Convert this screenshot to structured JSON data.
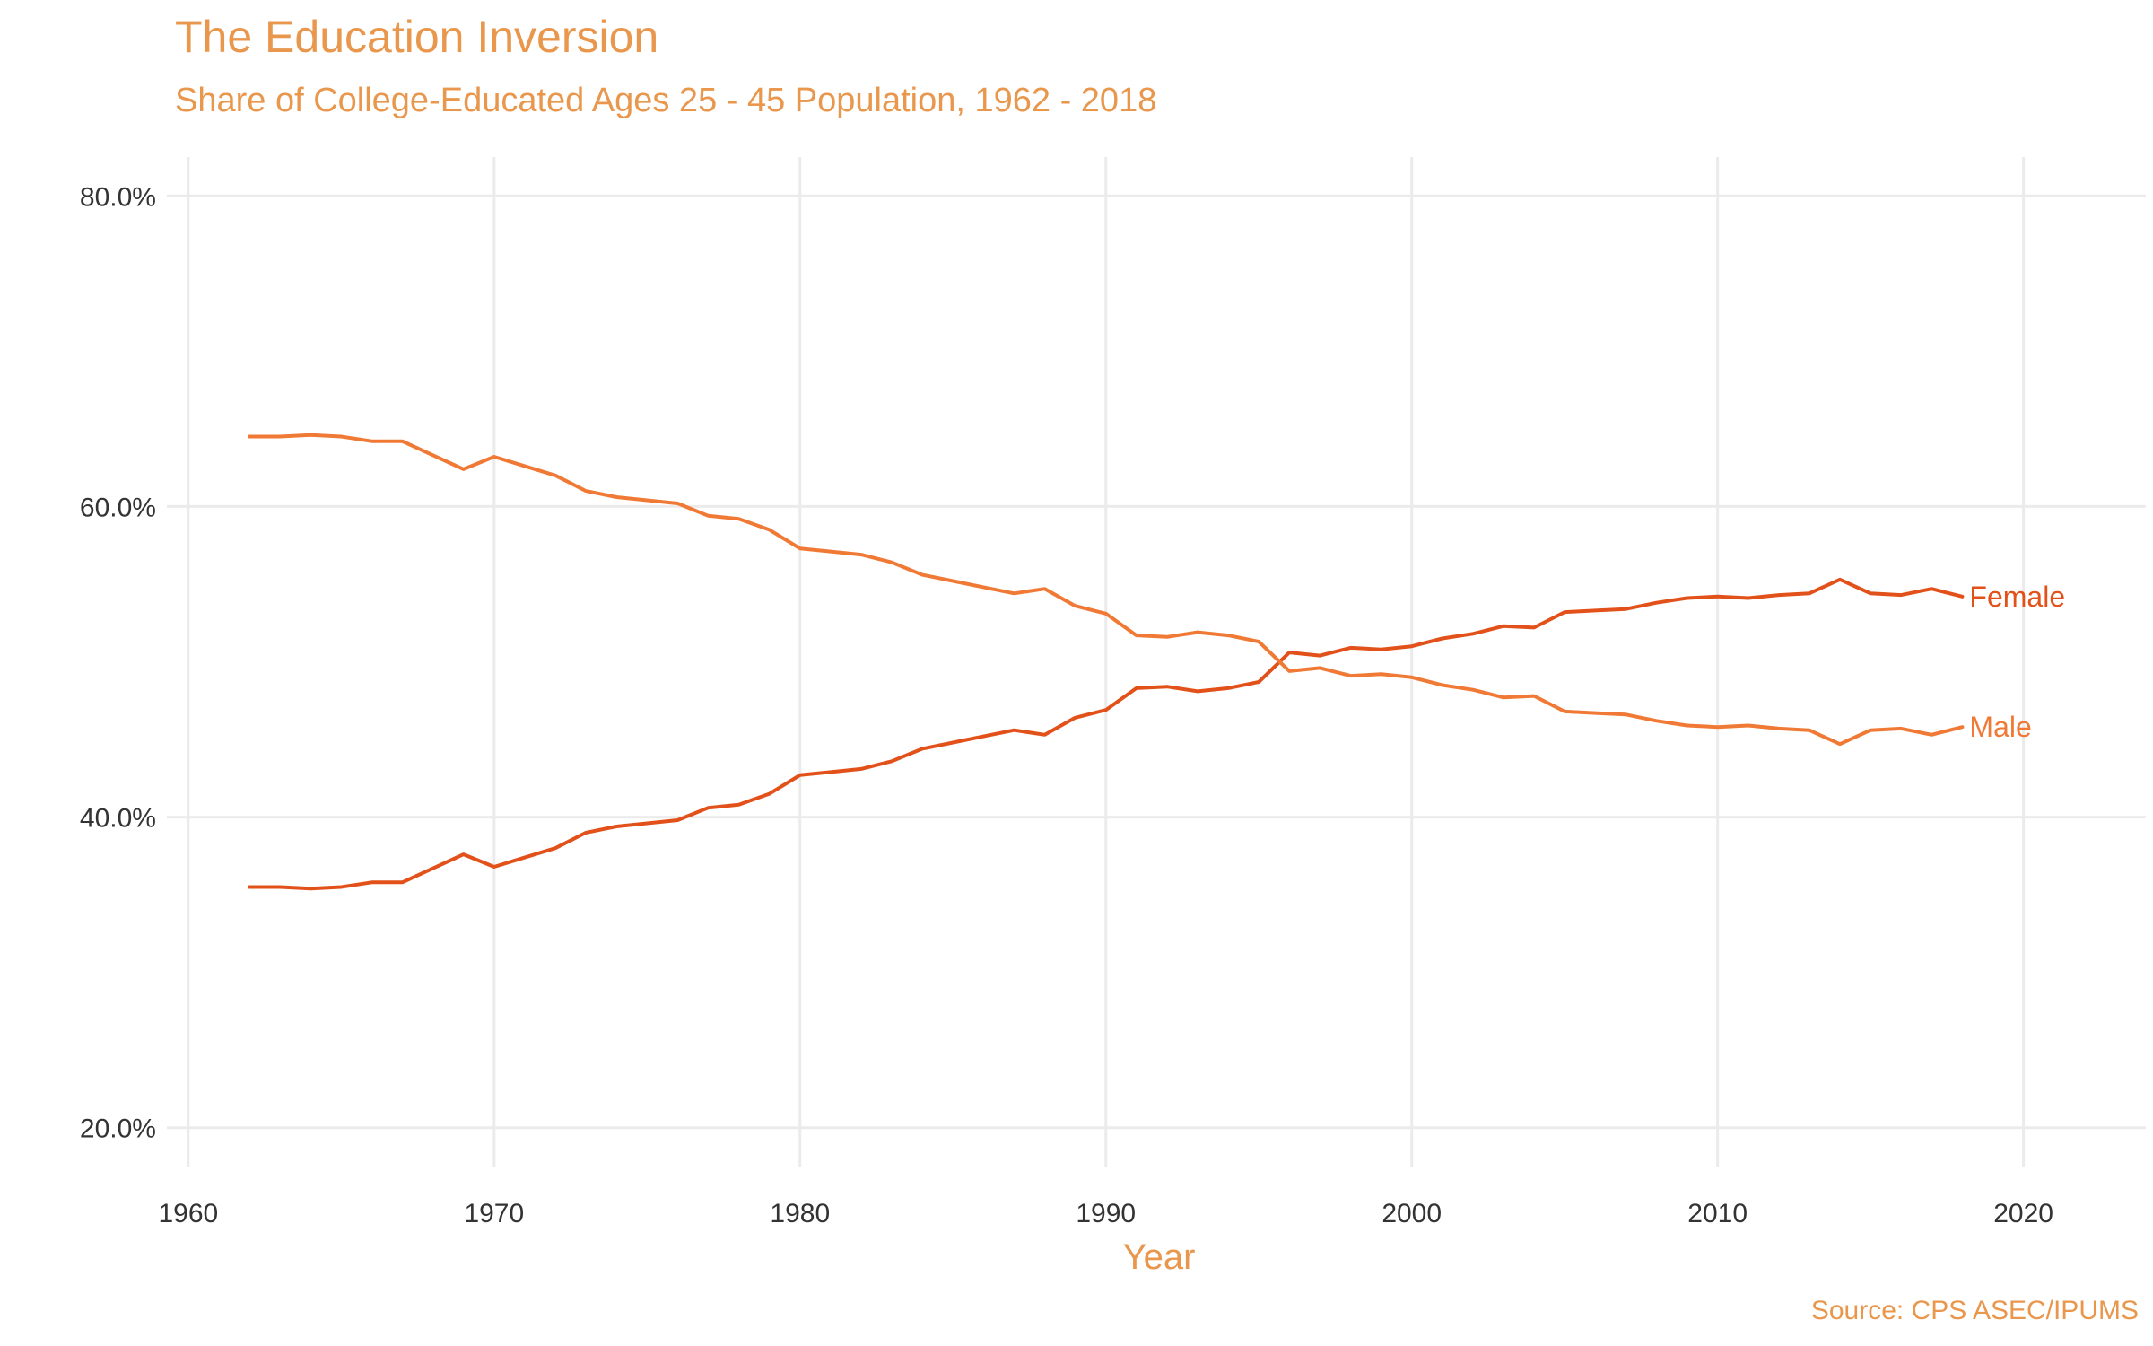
{
  "chart_data": {
    "type": "line",
    "title": "The Education Inversion",
    "subtitle": "Share of College-Educated Ages 25 - 45 Population, 1962 - 2018",
    "xlabel": "Year",
    "ylabel": "",
    "caption": "Source: CPS ASEC/IPUMS",
    "xlim": [
      1959.3,
      2024
    ],
    "ylim": [
      0.175,
      0.825
    ],
    "x_ticks": [
      1960,
      1970,
      1980,
      1990,
      2000,
      2010,
      2020
    ],
    "x_tick_labels": [
      "1960",
      "1970",
      "1980",
      "1990",
      "2000",
      "2010",
      "2020"
    ],
    "y_ticks": [
      0.2,
      0.4,
      0.6,
      0.8
    ],
    "y_tick_labels": [
      "20.0%",
      "40.0%",
      "60.0%",
      "80.0%"
    ],
    "grid": true,
    "legend": "direct labels at line ends",
    "x": [
      1962,
      1963,
      1964,
      1965,
      1966,
      1967,
      1968,
      1969,
      1970,
      1971,
      1972,
      1973,
      1974,
      1975,
      1976,
      1977,
      1978,
      1979,
      1980,
      1981,
      1982,
      1983,
      1984,
      1985,
      1986,
      1987,
      1988,
      1989,
      1990,
      1991,
      1992,
      1993,
      1994,
      1995,
      1996,
      1997,
      1998,
      1999,
      2000,
      2001,
      2002,
      2003,
      2004,
      2005,
      2006,
      2007,
      2008,
      2009,
      2010,
      2011,
      2012,
      2013,
      2014,
      2015,
      2016,
      2017,
      2018
    ],
    "series": [
      {
        "name": "Female",
        "color": "#e2511a",
        "values": [
          0.355,
          0.355,
          0.354,
          0.355,
          0.358,
          0.358,
          0.367,
          0.376,
          0.368,
          0.374,
          0.38,
          0.39,
          0.394,
          0.396,
          0.398,
          0.406,
          0.408,
          0.415,
          0.427,
          0.429,
          0.431,
          0.436,
          0.444,
          0.448,
          0.452,
          0.456,
          0.453,
          0.464,
          0.469,
          0.483,
          0.484,
          0.481,
          0.483,
          0.487,
          0.506,
          0.504,
          0.509,
          0.508,
          0.51,
          0.515,
          0.518,
          0.523,
          0.522,
          0.532,
          0.533,
          0.534,
          0.538,
          0.541,
          0.542,
          0.541,
          0.543,
          0.544,
          0.553,
          0.544,
          0.543,
          0.547,
          0.542
        ]
      },
      {
        "name": "Male",
        "color": "#f07a35",
        "values": [
          0.645,
          0.645,
          0.646,
          0.645,
          0.642,
          0.642,
          0.633,
          0.624,
          0.632,
          0.626,
          0.62,
          0.61,
          0.606,
          0.604,
          0.602,
          0.594,
          0.592,
          0.585,
          0.573,
          0.571,
          0.569,
          0.564,
          0.556,
          0.552,
          0.548,
          0.544,
          0.547,
          0.536,
          0.531,
          0.517,
          0.516,
          0.519,
          0.517,
          0.513,
          0.494,
          0.496,
          0.491,
          0.492,
          0.49,
          0.485,
          0.482,
          0.477,
          0.478,
          0.468,
          0.467,
          0.466,
          0.462,
          0.459,
          0.458,
          0.459,
          0.457,
          0.456,
          0.447,
          0.456,
          0.457,
          0.453,
          0.458
        ]
      }
    ]
  }
}
